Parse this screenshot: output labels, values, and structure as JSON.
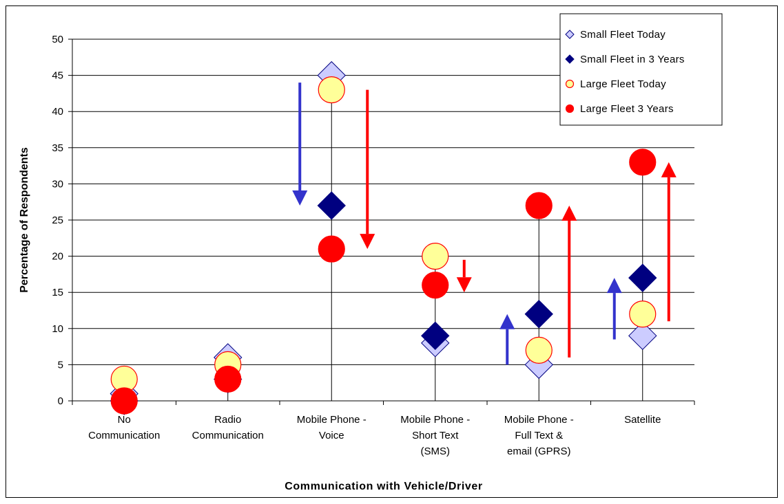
{
  "chart_data": {
    "type": "scatter",
    "title": "",
    "xlabel": "Communication with Vehicle/Driver",
    "ylabel": "Percentage of Respondents",
    "ylim": [
      0,
      50
    ],
    "yticks": [
      0,
      5,
      10,
      15,
      20,
      25,
      30,
      35,
      40,
      45,
      50
    ],
    "grid": "horizontal",
    "legend_position": "top-right",
    "categories": [
      [
        "No",
        "Communication"
      ],
      [
        "Radio",
        "Communication"
      ],
      [
        "Mobile Phone  -",
        "Voice"
      ],
      [
        "Mobile Phone -",
        "Short Text",
        "(SMS)"
      ],
      [
        "Mobile Phone -",
        "Full Text &",
        "email (GPRS)"
      ],
      [
        "Satellite"
      ]
    ],
    "series": [
      {
        "name": "Small Fleet Today",
        "marker": "diamond",
        "color": "#ccccff",
        "stroke": "#000080",
        "values": [
          1,
          6,
          45,
          8,
          5,
          9
        ]
      },
      {
        "name": "Small Fleet in 3 Years",
        "marker": "diamond",
        "color": "#000080",
        "stroke": "#000080",
        "values": [
          0,
          3,
          27,
          9,
          12,
          17
        ]
      },
      {
        "name": "Large Fleet Today",
        "marker": "circle",
        "color": "#ffff99",
        "stroke": "#ff0000",
        "values": [
          3,
          5,
          43,
          20,
          7,
          12
        ]
      },
      {
        "name": "Large Fleet 3 Years",
        "marker": "circle",
        "color": "#ff0000",
        "stroke": "#ff0000",
        "values": [
          0,
          3,
          21,
          16,
          27,
          33
        ]
      }
    ],
    "trend_arrows": [
      {
        "category": 2,
        "color": "#3333cc",
        "from": 44,
        "to": 27
      },
      {
        "category": 2,
        "color": "#ff0000",
        "from": 43,
        "to": 21
      },
      {
        "category": 3,
        "color": "#ff0000",
        "from": 19.5,
        "to": 15
      },
      {
        "category": 4,
        "color": "#3333cc",
        "from": 5,
        "to": 12
      },
      {
        "category": 4,
        "color": "#ff0000",
        "from": 6,
        "to": 27
      },
      {
        "category": 5,
        "color": "#3333cc",
        "from": 8.5,
        "to": 17
      },
      {
        "category": 5,
        "color": "#ff0000",
        "from": 11,
        "to": 33
      }
    ]
  }
}
